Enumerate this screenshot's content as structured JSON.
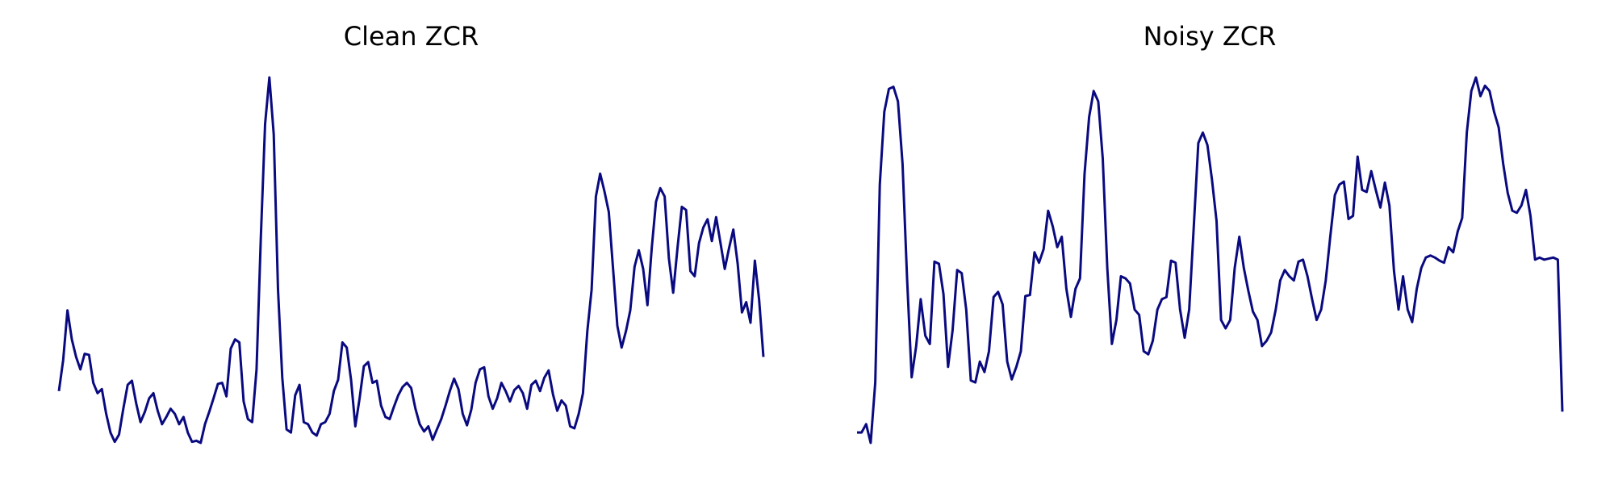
{
  "chart_data": [
    {
      "type": "line",
      "title": "Clean ZCR",
      "color": "#0a0a80",
      "values": [
        0.062,
        0.092,
        0.14,
        0.112,
        0.095,
        0.083,
        0.098,
        0.097,
        0.07,
        0.06,
        0.064,
        0.04,
        0.022,
        0.013,
        0.02,
        0.045,
        0.068,
        0.072,
        0.05,
        0.032,
        0.042,
        0.055,
        0.06,
        0.043,
        0.03,
        0.037,
        0.045,
        0.04,
        0.03,
        0.037,
        0.022,
        0.013,
        0.014,
        0.012,
        0.03,
        0.042,
        0.055,
        0.069,
        0.07,
        0.057,
        0.103,
        0.112,
        0.109,
        0.052,
        0.035,
        0.032,
        0.083,
        0.21,
        0.32,
        0.365,
        0.31,
        0.16,
        0.075,
        0.025,
        0.022,
        0.058,
        0.068,
        0.032,
        0.03,
        0.022,
        0.019,
        0.03,
        0.032,
        0.04,
        0.062,
        0.073,
        0.109,
        0.104,
        0.073,
        0.028,
        0.055,
        0.086,
        0.09,
        0.07,
        0.072,
        0.048,
        0.037,
        0.035,
        0.047,
        0.058,
        0.066,
        0.07,
        0.065,
        0.045,
        0.03,
        0.023,
        0.028,
        0.015,
        0.025,
        0.035,
        0.048,
        0.062,
        0.074,
        0.064,
        0.04,
        0.029,
        0.044,
        0.07,
        0.083,
        0.085,
        0.057,
        0.045,
        0.055,
        0.07,
        0.062,
        0.052,
        0.063,
        0.067,
        0.06,
        0.045,
        0.068,
        0.072,
        0.062,
        0.075,
        0.082,
        0.059,
        0.043,
        0.053,
        0.048,
        0.028,
        0.026,
        0.04,
        0.06,
        0.12,
        0.16,
        0.25,
        0.272,
        0.255,
        0.235,
        0.18,
        0.125,
        0.104,
        0.12,
        0.14,
        0.182,
        0.198,
        0.18,
        0.145,
        0.2,
        0.245,
        0.258,
        0.25,
        0.19,
        0.157,
        0.2,
        0.24,
        0.237,
        0.178,
        0.173,
        0.205,
        0.22,
        0.228,
        0.207,
        0.23,
        0.205,
        0.18,
        0.2,
        0.218,
        0.185,
        0.138,
        0.148,
        0.128,
        0.188,
        0.15,
        0.095
      ]
    },
    {
      "type": "line",
      "title": "Noisy ZCR",
      "color": "#0a0a80",
      "values": [
        0.022,
        0.022,
        0.03,
        0.012,
        0.07,
        0.26,
        0.33,
        0.352,
        0.354,
        0.34,
        0.28,
        0.17,
        0.075,
        0.105,
        0.15,
        0.115,
        0.107,
        0.186,
        0.184,
        0.155,
        0.085,
        0.12,
        0.178,
        0.175,
        0.14,
        0.072,
        0.07,
        0.09,
        0.08,
        0.1,
        0.152,
        0.157,
        0.145,
        0.09,
        0.073,
        0.085,
        0.1,
        0.153,
        0.154,
        0.195,
        0.185,
        0.198,
        0.235,
        0.22,
        0.2,
        0.21,
        0.16,
        0.133,
        0.16,
        0.17,
        0.27,
        0.325,
        0.35,
        0.34,
        0.285,
        0.18,
        0.107,
        0.13,
        0.172,
        0.17,
        0.165,
        0.14,
        0.135,
        0.1,
        0.097,
        0.11,
        0.14,
        0.15,
        0.152,
        0.187,
        0.185,
        0.14,
        0.113,
        0.14,
        0.22,
        0.3,
        0.31,
        0.298,
        0.265,
        0.225,
        0.13,
        0.122,
        0.13,
        0.18,
        0.21,
        0.18,
        0.158,
        0.138,
        0.13,
        0.105,
        0.11,
        0.118,
        0.14,
        0.168,
        0.178,
        0.172,
        0.168,
        0.186,
        0.188,
        0.172,
        0.15,
        0.13,
        0.14,
        0.168,
        0.21,
        0.25,
        0.26,
        0.263,
        0.227,
        0.23,
        0.287,
        0.255,
        0.253,
        0.273,
        0.255,
        0.238,
        0.262,
        0.24,
        0.177,
        0.14,
        0.172,
        0.14,
        0.128,
        0.16,
        0.18,
        0.19,
        0.192,
        0.19,
        0.187,
        0.185,
        0.2,
        0.195,
        0.215,
        0.228,
        0.31,
        0.35,
        0.363,
        0.345,
        0.355,
        0.35,
        0.33,
        0.315,
        0.28,
        0.252,
        0.235,
        0.233,
        0.24,
        0.255,
        0.23,
        0.188,
        0.19,
        0.188,
        0.189,
        0.19,
        0.188,
        0.042
      ]
    }
  ]
}
